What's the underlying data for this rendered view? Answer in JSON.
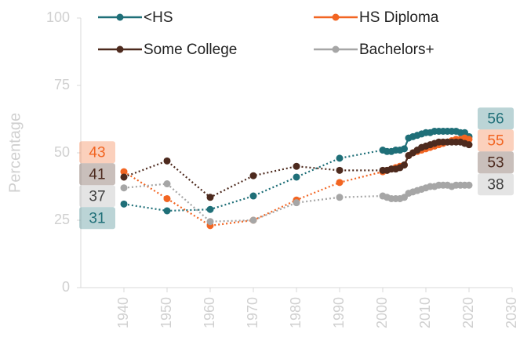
{
  "chart_data": {
    "type": "line",
    "y_label": "Percentage",
    "xlim": [
      1930,
      2030
    ],
    "xticks": [
      1940,
      1950,
      1960,
      1970,
      1980,
      1990,
      2000,
      2010,
      2020,
      2030
    ],
    "ylim": [
      0,
      100
    ],
    "yticks": [
      0,
      25,
      50,
      75,
      100
    ],
    "x": [
      1940,
      1950,
      1960,
      1970,
      1980,
      1990,
      2000,
      2001,
      2002,
      2003,
      2004,
      2005,
      2006,
      2007,
      2008,
      2009,
      2010,
      2011,
      2012,
      2013,
      2014,
      2015,
      2016,
      2017,
      2018,
      2019,
      2020
    ],
    "series": [
      {
        "name": "<HS",
        "color": "#1f6f78",
        "start_label": "31",
        "end_label": "56",
        "values": [
          31,
          28.5,
          29,
          34,
          41,
          48,
          51,
          50.5,
          50.5,
          51,
          51,
          51.5,
          55.5,
          56,
          56.5,
          57,
          57.5,
          57.5,
          58,
          58,
          58,
          58,
          58,
          58,
          57.5,
          57.5,
          56
        ]
      },
      {
        "name": "HS Diploma",
        "color": "#f26522",
        "start_label": "43",
        "end_label": "55",
        "values": [
          43,
          33,
          23,
          25,
          32.5,
          39,
          43,
          43.5,
          44,
          44.5,
          45,
          45.5,
          49,
          50,
          50.5,
          51,
          51.5,
          52,
          52.5,
          53,
          53.5,
          54,
          54.5,
          55,
          55,
          55.5,
          55
        ]
      },
      {
        "name": "Some College",
        "color": "#4d2a1e",
        "start_label": "41",
        "end_label": "53",
        "values": [
          41,
          47,
          33.5,
          41.5,
          45,
          43.5,
          43.5,
          43.5,
          44,
          44,
          44.5,
          45.5,
          49,
          50,
          51,
          52,
          52.5,
          53,
          53.5,
          54,
          54,
          54,
          54,
          54,
          54,
          53.5,
          53
        ]
      },
      {
        "name": "Bachelors+",
        "color": "#a6a6a6",
        "start_label": "37",
        "end_label": "38",
        "values": [
          37,
          38.5,
          24.5,
          25,
          31.5,
          33.5,
          34,
          33.5,
          33,
          33,
          33,
          33.5,
          35,
          35.5,
          36,
          36.5,
          37,
          37.5,
          37.5,
          38,
          38,
          38,
          37.5,
          38,
          38,
          38,
          38
        ]
      }
    ],
    "legend": "top",
    "grid": false
  }
}
